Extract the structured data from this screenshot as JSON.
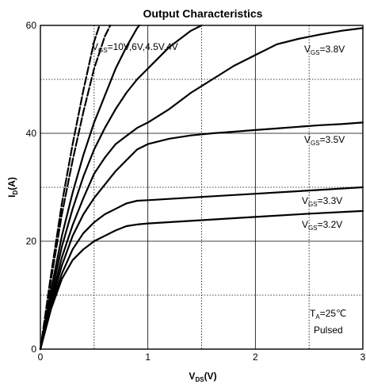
{
  "chart_data": {
    "type": "line",
    "title": "Output Characteristics",
    "xlabel": {
      "main": "V",
      "sub": "DS",
      "tail": "(V)"
    },
    "ylabel": {
      "main": "I",
      "sub": "D",
      "tail": "(A)"
    },
    "xlim": [
      0,
      3
    ],
    "ylim": [
      0,
      60
    ],
    "xticks": [
      0,
      1,
      2,
      3
    ],
    "yticks": [
      0,
      20,
      40,
      60
    ],
    "grid_solid_x": [
      1,
      2,
      3
    ],
    "grid_solid_y": [
      20,
      40,
      60
    ],
    "grid_dotted_x": [
      0.5,
      1.5,
      2.5
    ],
    "grid_dotted_y": [
      10,
      30,
      50
    ],
    "series": [
      {
        "name": "VGS=10V",
        "dashed": true,
        "x": [
          0,
          0.1,
          0.2,
          0.3,
          0.4,
          0.5,
          0.55
        ],
        "y": [
          0,
          14,
          27,
          38,
          48,
          57,
          60
        ]
      },
      {
        "name": "VGS=6V",
        "dashed": true,
        "x": [
          0,
          0.1,
          0.2,
          0.3,
          0.4,
          0.5,
          0.6,
          0.65
        ],
        "y": [
          0,
          13,
          25,
          35,
          44,
          52,
          58,
          60
        ]
      },
      {
        "name": "VGS=4.5V",
        "dashed": false,
        "x": [
          0,
          0.1,
          0.2,
          0.3,
          0.4,
          0.5,
          0.6,
          0.7,
          0.8,
          0.9,
          0.92
        ],
        "y": [
          0,
          11,
          21,
          29,
          36,
          42,
          47,
          52,
          56,
          59.5,
          60
        ]
      },
      {
        "name": "VGS=4V",
        "dashed": false,
        "x": [
          0,
          0.1,
          0.2,
          0.3,
          0.4,
          0.5,
          0.6,
          0.7,
          0.8,
          0.9,
          1.0,
          1.1,
          1.2,
          1.3,
          1.4,
          1.5
        ],
        "y": [
          0,
          10,
          19,
          26,
          32,
          37,
          41,
          44.5,
          47.5,
          50,
          52,
          54,
          56,
          57.5,
          59,
          60
        ]
      },
      {
        "name": "VGS=3.8V",
        "dashed": false,
        "x": [
          0,
          0.1,
          0.2,
          0.3,
          0.4,
          0.5,
          0.6,
          0.7,
          0.8,
          0.9,
          1.0,
          1.2,
          1.4,
          1.6,
          1.8,
          2.0,
          2.2,
          2.4,
          2.6,
          2.8,
          3.0
        ],
        "y": [
          0,
          9,
          17,
          23,
          28,
          32.5,
          35.5,
          38,
          39.5,
          41,
          42,
          44.5,
          47.5,
          50,
          52.5,
          54.5,
          56.5,
          57.5,
          58.3,
          59,
          59.5
        ]
      },
      {
        "name": "VGS=3.5V",
        "dashed": false,
        "x": [
          0,
          0.1,
          0.2,
          0.3,
          0.4,
          0.5,
          0.6,
          0.7,
          0.8,
          0.9,
          1.0,
          1.2,
          1.4,
          1.6,
          1.8,
          2.0,
          2.2,
          2.4,
          2.6,
          2.8,
          3.0
        ],
        "y": [
          0,
          8.5,
          15.5,
          21,
          25,
          28,
          30.5,
          33,
          35,
          37,
          38,
          39,
          39.6,
          40,
          40.3,
          40.6,
          40.9,
          41.2,
          41.5,
          41.7,
          42
        ]
      },
      {
        "name": "VGS=3.3V",
        "dashed": false,
        "x": [
          0,
          0.1,
          0.2,
          0.3,
          0.4,
          0.5,
          0.6,
          0.7,
          0.8,
          0.9,
          1.0,
          1.5,
          2.0,
          2.5,
          3.0
        ],
        "y": [
          0,
          8,
          14,
          18.5,
          21.5,
          23.5,
          25,
          26,
          27,
          27.5,
          27.6,
          28.2,
          28.8,
          29.4,
          30
        ]
      },
      {
        "name": "VGS=3.2V",
        "dashed": false,
        "x": [
          0,
          0.1,
          0.2,
          0.3,
          0.4,
          0.5,
          0.6,
          0.7,
          0.8,
          0.9,
          1.0,
          1.5,
          2.0,
          2.5,
          3.0
        ],
        "y": [
          0,
          7.5,
          13,
          16.5,
          18.5,
          20,
          21,
          22,
          22.8,
          23.1,
          23.3,
          23.9,
          24.5,
          25.1,
          25.6
        ]
      }
    ],
    "annotations": {
      "vgs_multi": {
        "main": "V",
        "sub": "GS",
        "tail": "=10V,6V,4.5V,4V"
      },
      "vgs_38": {
        "main": "V",
        "sub": "GS",
        "tail": "=3.8V"
      },
      "vgs_35": {
        "main": "V",
        "sub": "GS",
        "tail": "=3.5V"
      },
      "vgs_33": {
        "main": "V",
        "sub": "GS",
        "tail": "=3.3V"
      },
      "vgs_32": {
        "main": "V",
        "sub": "GS",
        "tail": "=3.2V"
      },
      "ta": {
        "main": "T",
        "sub": "A",
        "tail": "=25℃"
      },
      "pulsed": "Pulsed"
    }
  }
}
